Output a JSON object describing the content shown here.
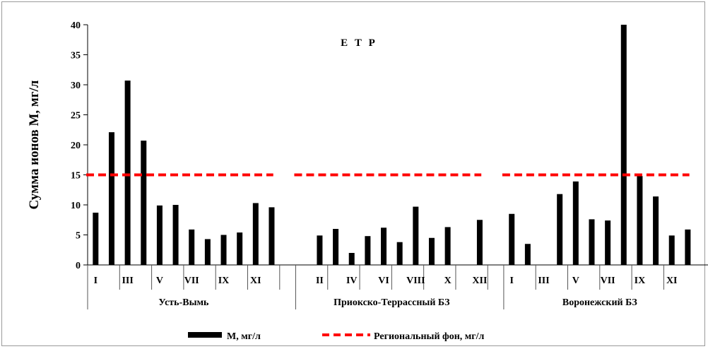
{
  "chart_data": {
    "type": "bar",
    "title": "Е Т Р",
    "ylabel": "Сумма ионов М, мг/л",
    "xlabel": "",
    "ylim": [
      0,
      40
    ],
    "yticks": [
      0,
      5,
      10,
      15,
      20,
      25,
      30,
      35,
      40
    ],
    "grid": false,
    "legend_position": "bottom",
    "groups": [
      {
        "name": "Усть-Вымь",
        "months": [
          "I",
          "II",
          "III",
          "IV",
          "V",
          "VI",
          "VII",
          "VIII",
          "IX",
          "X",
          "XI",
          "XII"
        ],
        "tick_labels": [
          "I",
          "",
          "III",
          "",
          "V",
          "",
          "VII",
          "",
          "IX",
          "",
          "XI",
          ""
        ],
        "values": [
          8.7,
          22.1,
          30.7,
          20.7,
          9.9,
          10.0,
          5.9,
          4.3,
          5.0,
          5.4,
          10.3,
          9.6
        ]
      },
      {
        "name": "Приокско-Террассный БЗ",
        "months": [
          "I",
          "II",
          "III",
          "IV",
          "V",
          "VI",
          "VII",
          "VIII",
          "IX",
          "X",
          "XI",
          "XII"
        ],
        "tick_labels": [
          "",
          "II",
          "",
          "IV",
          "",
          "VI",
          "",
          "VIII",
          "",
          "X",
          "",
          "XII"
        ],
        "values": [
          null,
          4.9,
          6.0,
          2.0,
          4.8,
          6.2,
          3.8,
          9.7,
          4.5,
          6.3,
          null,
          7.5
        ]
      },
      {
        "name": "Воронежский БЗ",
        "months": [
          "I",
          "II",
          "III",
          "IV",
          "V",
          "VI",
          "VII",
          "VIII",
          "IX",
          "X",
          "XI",
          "XII"
        ],
        "tick_labels": [
          "I",
          "",
          "III",
          "",
          "V",
          "",
          "VII",
          "",
          "IX",
          "",
          "XI",
          ""
        ],
        "values": [
          8.5,
          3.5,
          null,
          11.8,
          13.9,
          7.6,
          7.4,
          40.0,
          14.8,
          11.4,
          4.9,
          5.9
        ]
      }
    ],
    "series": [
      {
        "name": "М, мг/л",
        "type": "bar",
        "color": "#000000"
      },
      {
        "name": "Региональный фон, мг/л",
        "type": "line",
        "style": "dashed",
        "color": "#ff0000",
        "value": 15
      }
    ]
  }
}
